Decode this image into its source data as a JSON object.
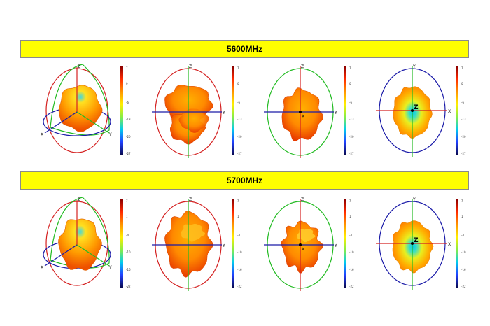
{
  "sections": [
    {
      "title": "5600MHz",
      "scale_ticks": [
        "7",
        "0",
        "-6",
        "-13",
        "-20",
        "-27"
      ],
      "views": [
        {
          "view": "isometric",
          "axes": [
            "Z",
            "X",
            "Y"
          ]
        },
        {
          "view": "front",
          "axes": [
            "Z",
            "Y"
          ]
        },
        {
          "view": "side",
          "axes": [
            "Z",
            "Y",
            "X"
          ]
        },
        {
          "view": "top",
          "axes": [
            "Y",
            "X",
            "Z"
          ]
        }
      ]
    },
    {
      "title": "5700MHz",
      "scale_ticks": [
        "7",
        "1",
        "-4",
        "-10",
        "-16",
        "-22"
      ],
      "views": [
        {
          "view": "isometric",
          "axes": [
            "Z",
            "X",
            "Y"
          ]
        },
        {
          "view": "front",
          "axes": [
            "Z",
            "Y"
          ]
        },
        {
          "view": "side",
          "axes": [
            "Z",
            "Y",
            "X"
          ]
        },
        {
          "view": "top",
          "axes": [
            "Y",
            "X",
            "Z"
          ]
        }
      ]
    }
  ],
  "colors": {
    "band": "#ffff00",
    "z_axis": "#d42020",
    "y_axis": "#22bb22",
    "x_axis": "#1a1aa8",
    "scale": [
      "#8b0000",
      "#ff2a00",
      "#ff9500",
      "#ffee00",
      "#88ee44",
      "#00ccee",
      "#2040ff",
      "#0a0a50"
    ]
  }
}
